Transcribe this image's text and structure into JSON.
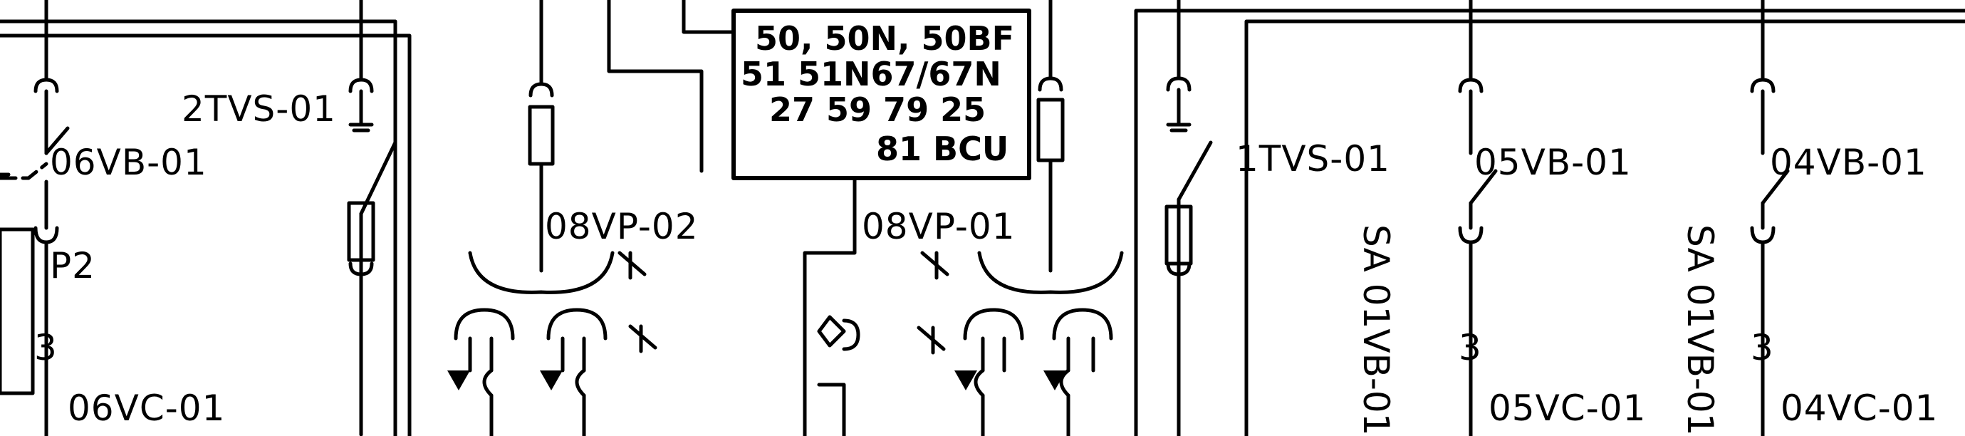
{
  "diagram": {
    "orientation": "horizontally mirrored",
    "colors": {
      "line": "#000000",
      "background": "#ffffff"
    },
    "labels": {
      "lbl_06vb": "06VB-01",
      "lbl_2tvs": "2TVS-01",
      "lbl_p2": "P2",
      "lbl_06vc": "06VC-01",
      "lbl_08vp02": "08VP-02",
      "lbl_08vp01": "08VP-01",
      "lbl_1tvs": "1TVS-01",
      "lbl_05vb": "05VB-01",
      "lbl_04vb": "04VB-01",
      "lbl_05vc": "05VC-01",
      "lbl_04vc": "04VC-01",
      "lbl_sa1": "SA 01VB-01",
      "lbl_sa2": "SA 01VB-01",
      "lbl_3a": "3",
      "lbl_3b": "3",
      "lbl_3c": "3"
    },
    "relay_box": {
      "line1": "50, 50N, 50BF",
      "line2": "51  51N67/67N",
      "line3": "27  59   79  25",
      "line4": "81  BCU"
    }
  }
}
